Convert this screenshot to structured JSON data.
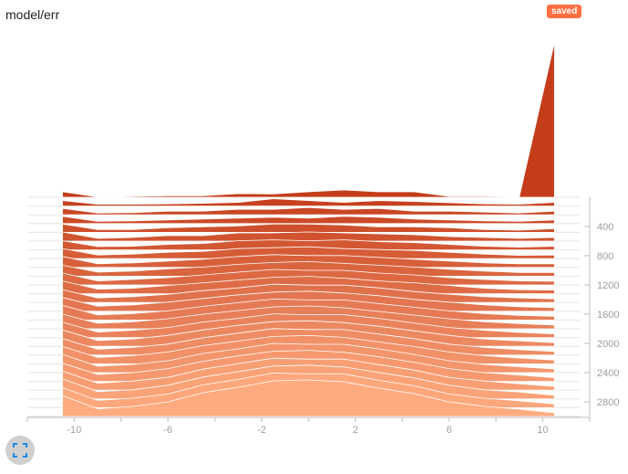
{
  "card": {
    "title": "model/err",
    "badge": "saved"
  },
  "icons": {
    "expand": "fullscreen-icon"
  },
  "colors": {
    "ridge_oldest": "#c43d1b",
    "ridge_newest": "#ffab80",
    "badge_bg": "#ff7043",
    "axis": "#bdbdbd",
    "tick_text": "#9e9e9e"
  },
  "chart_data": {
    "type": "ridgeline-histogram",
    "x_ticks": [
      -10,
      -6,
      -2,
      2,
      6,
      10
    ],
    "x_range": [
      -12,
      12
    ],
    "step_ticks": [
      400,
      800,
      1200,
      1600,
      2000,
      2400,
      2800
    ],
    "step_range": [
      0,
      3000
    ],
    "x": [
      -10.5,
      -9,
      -7.5,
      -6,
      -4.5,
      -3,
      -1.5,
      0,
      1.5,
      3,
      4.5,
      6,
      7.5,
      9,
      10.5
    ],
    "series": [
      {
        "step": 0,
        "values": [
          0.3,
          0.02,
          0.05,
          0.08,
          0.08,
          0.2,
          0.18,
          0.3,
          0.4,
          0.3,
          0.3,
          0.05,
          0.05,
          0.03,
          8.5
        ]
      },
      {
        "step": 120,
        "values": [
          0.3,
          0.1,
          0.1,
          0.12,
          0.15,
          0.2,
          0.4,
          0.3,
          0.2,
          0.3,
          0.25,
          0.18,
          0.12,
          0.1,
          0.2
        ]
      },
      {
        "step": 240,
        "values": [
          0.35,
          0.1,
          0.12,
          0.2,
          0.2,
          0.3,
          0.3,
          0.4,
          0.3,
          0.35,
          0.2,
          0.2,
          0.15,
          0.1,
          0.2
        ]
      },
      {
        "step": 360,
        "values": [
          0.4,
          0.12,
          0.15,
          0.2,
          0.25,
          0.3,
          0.35,
          0.3,
          0.4,
          0.35,
          0.25,
          0.2,
          0.15,
          0.12,
          0.2
        ]
      },
      {
        "step": 480,
        "values": [
          0.45,
          0.15,
          0.15,
          0.25,
          0.3,
          0.35,
          0.45,
          0.45,
          0.4,
          0.3,
          0.3,
          0.25,
          0.15,
          0.12,
          0.2
        ]
      },
      {
        "step": 600,
        "values": [
          0.5,
          0.15,
          0.2,
          0.3,
          0.3,
          0.45,
          0.45,
          0.5,
          0.45,
          0.4,
          0.35,
          0.25,
          0.2,
          0.15,
          0.2
        ]
      },
      {
        "step": 720,
        "values": [
          0.5,
          0.18,
          0.2,
          0.3,
          0.35,
          0.5,
          0.55,
          0.5,
          0.55,
          0.45,
          0.4,
          0.3,
          0.2,
          0.15,
          0.2
        ]
      },
      {
        "step": 840,
        "values": [
          0.55,
          0.2,
          0.25,
          0.35,
          0.4,
          0.55,
          0.6,
          0.65,
          0.55,
          0.5,
          0.45,
          0.35,
          0.25,
          0.18,
          0.2
        ]
      },
      {
        "step": 960,
        "values": [
          0.6,
          0.2,
          0.25,
          0.35,
          0.45,
          0.6,
          0.7,
          0.65,
          0.65,
          0.55,
          0.45,
          0.35,
          0.25,
          0.2,
          0.2
        ]
      },
      {
        "step": 1080,
        "values": [
          0.6,
          0.22,
          0.28,
          0.4,
          0.5,
          0.65,
          0.75,
          0.8,
          0.7,
          0.6,
          0.5,
          0.38,
          0.28,
          0.2,
          0.2
        ]
      },
      {
        "step": 1200,
        "values": [
          0.65,
          0.22,
          0.3,
          0.4,
          0.55,
          0.7,
          0.85,
          0.8,
          0.8,
          0.65,
          0.55,
          0.4,
          0.3,
          0.22,
          0.2
        ]
      },
      {
        "step": 1320,
        "values": [
          0.7,
          0.25,
          0.3,
          0.45,
          0.6,
          0.75,
          0.9,
          0.95,
          0.85,
          0.7,
          0.6,
          0.45,
          0.3,
          0.22,
          0.2
        ]
      },
      {
        "step": 1440,
        "values": [
          0.7,
          0.25,
          0.32,
          0.45,
          0.65,
          0.8,
          1.0,
          0.95,
          0.95,
          0.8,
          0.6,
          0.45,
          0.32,
          0.25,
          0.2
        ]
      },
      {
        "step": 1560,
        "values": [
          0.75,
          0.28,
          0.35,
          0.5,
          0.7,
          0.9,
          1.05,
          1.1,
          1.0,
          0.85,
          0.65,
          0.5,
          0.35,
          0.25,
          0.2
        ]
      },
      {
        "step": 1680,
        "values": [
          0.8,
          0.28,
          0.35,
          0.5,
          0.75,
          0.95,
          1.15,
          1.1,
          1.1,
          0.9,
          0.7,
          0.5,
          0.35,
          0.25,
          0.2
        ]
      },
      {
        "step": 1800,
        "values": [
          0.8,
          0.3,
          0.38,
          0.55,
          0.8,
          1.0,
          1.2,
          1.25,
          1.15,
          0.95,
          0.75,
          0.55,
          0.38,
          0.28,
          0.2
        ]
      },
      {
        "step": 1920,
        "values": [
          0.85,
          0.3,
          0.4,
          0.55,
          0.85,
          1.05,
          1.3,
          1.25,
          1.25,
          1.05,
          0.8,
          0.55,
          0.4,
          0.28,
          0.2
        ]
      },
      {
        "step": 2040,
        "values": [
          0.9,
          0.32,
          0.4,
          0.6,
          0.9,
          1.15,
          1.35,
          1.4,
          1.3,
          1.1,
          0.85,
          0.6,
          0.4,
          0.3,
          0.2
        ]
      },
      {
        "step": 2160,
        "values": [
          0.9,
          0.32,
          0.42,
          0.6,
          0.95,
          1.2,
          1.45,
          1.4,
          1.4,
          1.15,
          0.9,
          0.6,
          0.42,
          0.3,
          0.2
        ]
      },
      {
        "step": 2280,
        "values": [
          0.95,
          0.35,
          0.45,
          0.65,
          1.0,
          1.25,
          1.5,
          1.55,
          1.45,
          1.2,
          0.95,
          0.65,
          0.45,
          0.32,
          0.2
        ]
      },
      {
        "step": 2400,
        "values": [
          1.0,
          0.35,
          0.45,
          0.65,
          1.05,
          1.3,
          1.6,
          1.55,
          1.55,
          1.3,
          1.0,
          0.65,
          0.45,
          0.32,
          0.2
        ]
      },
      {
        "step": 2520,
        "values": [
          1.0,
          0.38,
          0.48,
          0.7,
          1.1,
          1.4,
          1.65,
          1.7,
          1.6,
          1.35,
          1.05,
          0.7,
          0.48,
          0.35,
          0.2
        ]
      },
      {
        "step": 2640,
        "values": [
          1.05,
          0.38,
          0.5,
          0.7,
          1.15,
          1.45,
          1.75,
          1.7,
          1.7,
          1.4,
          1.1,
          0.7,
          0.5,
          0.35,
          0.2
        ]
      },
      {
        "step": 2760,
        "values": [
          1.1,
          0.4,
          0.5,
          0.75,
          1.2,
          1.5,
          1.8,
          1.85,
          1.75,
          1.45,
          1.15,
          0.75,
          0.5,
          0.38,
          0.2
        ]
      },
      {
        "step": 2880,
        "values": [
          1.1,
          0.4,
          0.52,
          0.75,
          1.25,
          1.55,
          1.9,
          1.85,
          1.85,
          1.5,
          1.2,
          0.75,
          0.52,
          0.38,
          0.2
        ]
      },
      {
        "step": 3000,
        "values": [
          1.15,
          0.42,
          0.55,
          0.8,
          1.3,
          1.6,
          1.95,
          2.0,
          1.9,
          1.55,
          1.25,
          0.8,
          0.55,
          0.4,
          0.2
        ]
      }
    ]
  }
}
